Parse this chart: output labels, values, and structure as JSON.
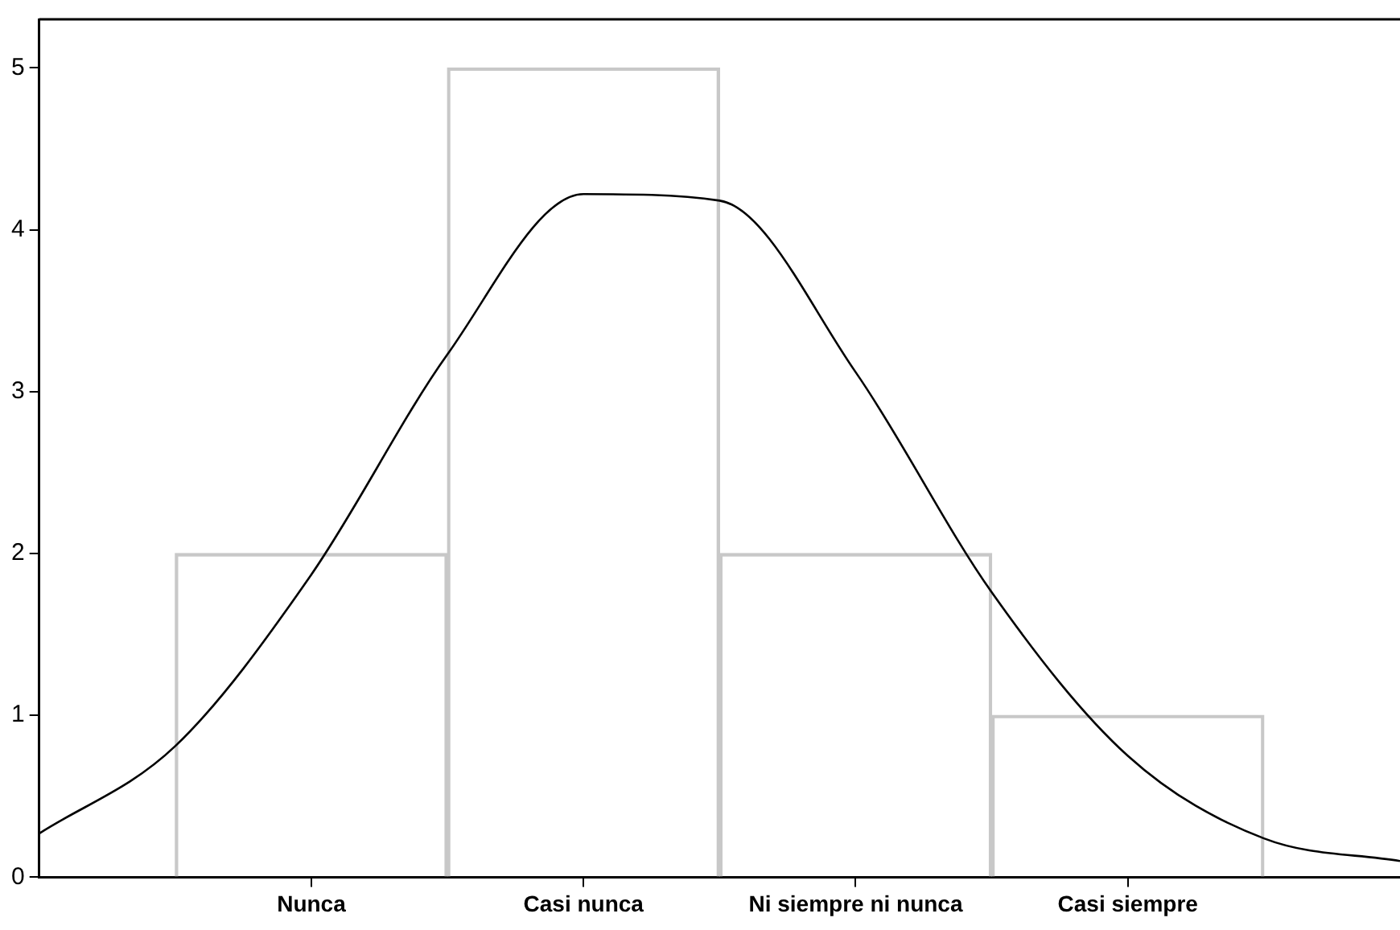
{
  "chart_data": {
    "type": "bar",
    "categories": [
      null,
      null,
      "Nunca",
      null,
      "Casi nunca",
      null,
      "Ni siempre ni nunca",
      null,
      "Casi siempre",
      null,
      null
    ],
    "series": [
      {
        "values": [
          null,
          null,
          2,
          null,
          5,
          null,
          2,
          null,
          1,
          null,
          null
        ],
        "color": "#c8c8c8"
      },
      {
        "type": "line",
        "values": [
          0.27,
          0.81,
          1.87,
          3.23,
          4.22,
          4.18,
          3.12,
          1.76,
          0.75,
          0.24,
          0.1
        ],
        "color": "#000000"
      }
    ],
    "ylim": [
      0,
      5.3
    ],
    "yticks": [
      0,
      1,
      2,
      3,
      4,
      5
    ],
    "grid": false,
    "legend": false,
    "marker": "none"
  }
}
